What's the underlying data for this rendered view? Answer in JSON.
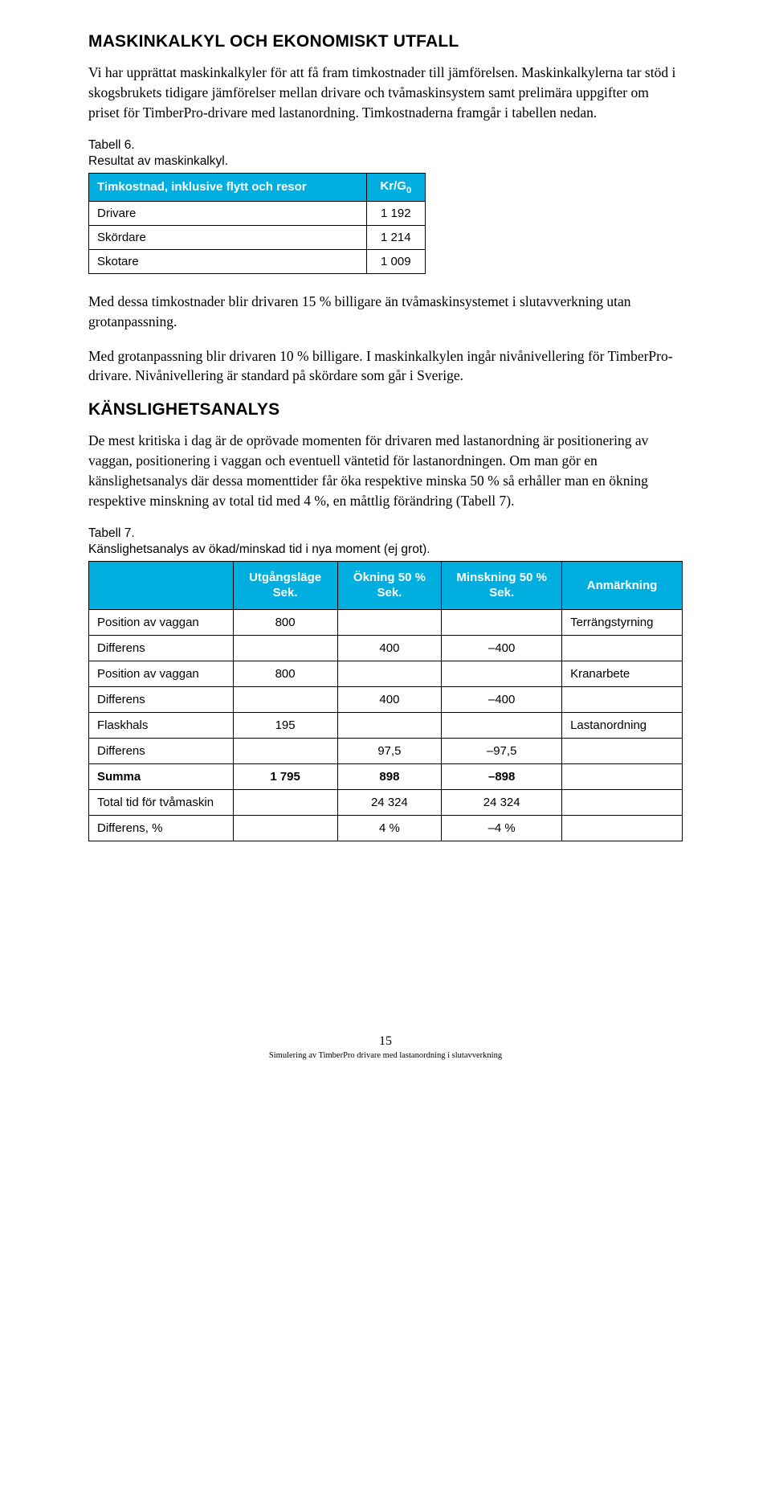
{
  "section1": {
    "title": "MASKINKALKYL OCH EKONOMISKT UTFALL",
    "p1": "Vi har upprättat maskinkalkyler för att få fram timkostnader till jämförelsen. Maskinkalkylerna tar stöd i skogsbrukets tidigare jämförelser mellan drivare och tvåmaskinsystem samt prelimära uppgifter om priset för TimberPro-drivare med lastanordning. Timkostnaderna framgår i tabellen nedan."
  },
  "table6": {
    "caption_line1": "Tabell 6.",
    "caption_line2": "Resultat av maskinkalkyl.",
    "header_left": "Timkostnad, inklusive flytt och resor",
    "header_right_pre": "Kr/G",
    "header_right_sub": "0",
    "rows": [
      {
        "label": "Drivare",
        "value": "1 192"
      },
      {
        "label": "Skördare",
        "value": "1 214"
      },
      {
        "label": "Skotare",
        "value": "1 009"
      }
    ]
  },
  "mid": {
    "p2": "Med dessa timkostnader blir drivaren 15 % billigare än tvåmaskinsystemet i slutavverkning utan grotanpassning.",
    "p3": "Med grotanpassning blir drivaren 10 % billigare. I maskinkalkylen ingår nivånivellering för TimberPro-drivare. Nivånivellering är standard på skördare som går i Sverige."
  },
  "section2": {
    "title": "KÄNSLIGHETSANALYS",
    "p4": "De mest kritiska i dag är de oprövade momenten för drivaren med lastanordning är positionering av vaggan, positionering i vaggan och eventuell väntetid för lastanordningen. Om man gör en känslighetsanalys där dessa momenttider får öka respektive minska 50 % så erhåller man en ökning respektive minskning av total tid med 4 %, en måttlig förändring (Tabell 7)."
  },
  "table7": {
    "caption_line1": "Tabell 7.",
    "caption_line2": "Känslighetsanalys av ökad/minskad tid i nya moment (ej grot).",
    "headers": {
      "c1": "",
      "c2a": "Utgångsläge",
      "c2b": "Sek.",
      "c3a": "Ökning 50 %",
      "c3b": "Sek.",
      "c4a": "Minskning 50 %",
      "c4b": "Sek.",
      "c5": "Anmärkning"
    },
    "rows": [
      {
        "label": "Position av vaggan",
        "c2": "800",
        "c3": "",
        "c4": "",
        "c5": "Terrängstyrning"
      },
      {
        "label": "Differens",
        "c2": "",
        "c3": "400",
        "c4": "–400",
        "c5": ""
      },
      {
        "label": "Position av vaggan",
        "c2": "800",
        "c3": "",
        "c4": "",
        "c5": "Kranarbete"
      },
      {
        "label": "Differens",
        "c2": "",
        "c3": "400",
        "c4": "–400",
        "c5": ""
      },
      {
        "label": "Flaskhals",
        "c2": "195",
        "c3": "",
        "c4": "",
        "c5": "Lastanordning"
      },
      {
        "label": "Differens",
        "c2": "",
        "c3": "97,5",
        "c4": "–97,5",
        "c5": ""
      },
      {
        "label": "Summa",
        "c2": "1 795",
        "c3": "898",
        "c4": "–898",
        "c5": "",
        "sum": true
      },
      {
        "label": "Total tid för tvåmaskin",
        "c2": "",
        "c3": "24 324",
        "c4": "24 324",
        "c5": ""
      },
      {
        "label": "Differens, %",
        "c2": "",
        "c3": "4 %",
        "c4": "–4 %",
        "c5": ""
      }
    ]
  },
  "footer": {
    "page": "15",
    "text": "Simulering av TimberPro drivare med lastanordning i slutavverkning"
  }
}
